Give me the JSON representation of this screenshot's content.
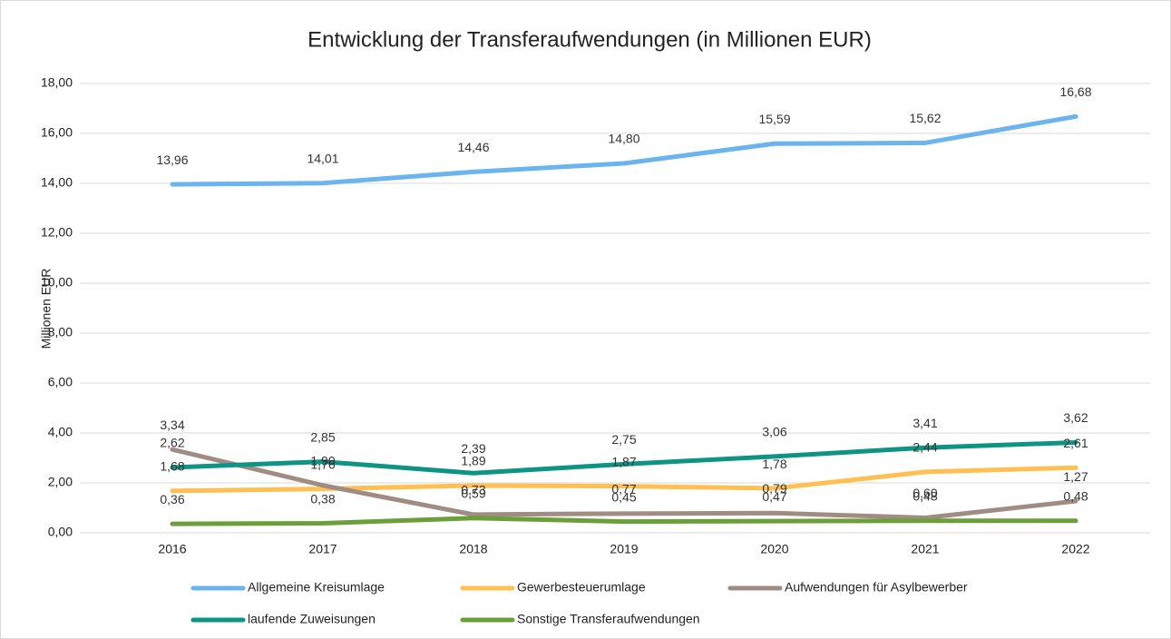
{
  "chart_data": {
    "type": "line",
    "title": "Entwicklung der Transferaufwendungen (in Millionen EUR)",
    "y_label": "Millionen EUR",
    "categories": [
      "2016",
      "2017",
      "2018",
      "2019",
      "2020",
      "2021",
      "2022"
    ],
    "series": [
      {
        "name": "Allgemeine Kreisumlage",
        "color": "#6cb4ee",
        "values": [
          13.96,
          14.01,
          14.46,
          14.8,
          15.59,
          15.62,
          16.68
        ],
        "value_labels": [
          "13,96",
          "14,01",
          "14,46",
          "14,80",
          "15,59",
          "15,62",
          "16,68"
        ]
      },
      {
        "name": "Gewerbesteuerumlage",
        "color": "#ffbf52",
        "values": [
          1.68,
          1.76,
          1.89,
          1.87,
          1.78,
          2.44,
          2.61
        ],
        "value_labels": [
          "1,68",
          "1,76",
          "1,89",
          "1,87",
          "1,78",
          "2,44",
          "2,61"
        ]
      },
      {
        "name": "Aufwendungen für Asylbewerber",
        "color": "#a08c82",
        "values": [
          3.34,
          1.9,
          0.73,
          0.77,
          0.79,
          0.6,
          1.27
        ],
        "value_labels": [
          "3,34",
          "1,90",
          "0,73",
          "0,77",
          "0,79",
          "0,60",
          "1,27"
        ]
      },
      {
        "name": "laufende Zuweisungen",
        "color": "#0e9484",
        "values": [
          2.62,
          2.85,
          2.39,
          2.75,
          3.06,
          3.41,
          3.62
        ],
        "value_labels": [
          "2,62",
          "2,85",
          "2,39",
          "2,75",
          "3,06",
          "3,41",
          "3,62"
        ]
      },
      {
        "name": "Sonstige Transferaufwendungen",
        "color": "#6a9f3a",
        "values": [
          0.36,
          0.38,
          0.59,
          0.45,
          0.47,
          0.48,
          0.48
        ],
        "value_labels": [
          "0,36",
          "0,38",
          "0,59",
          "0,45",
          "0,47",
          "0,48",
          "0,48"
        ]
      }
    ],
    "ylim": [
      0,
      18
    ],
    "yticks": [
      {
        "value": 0,
        "label": "0,00"
      },
      {
        "value": 2,
        "label": "2,00"
      },
      {
        "value": 4,
        "label": "4,00"
      },
      {
        "value": 6,
        "label": "6,00"
      },
      {
        "value": 8,
        "label": "8,00"
      },
      {
        "value": 10,
        "label": "10,00"
      },
      {
        "value": 12,
        "label": "12,00"
      },
      {
        "value": 14,
        "label": "14,00"
      },
      {
        "value": 16,
        "label": "16,00"
      },
      {
        "value": 18,
        "label": "18,00"
      }
    ],
    "grid": true,
    "legend": "bottom"
  }
}
